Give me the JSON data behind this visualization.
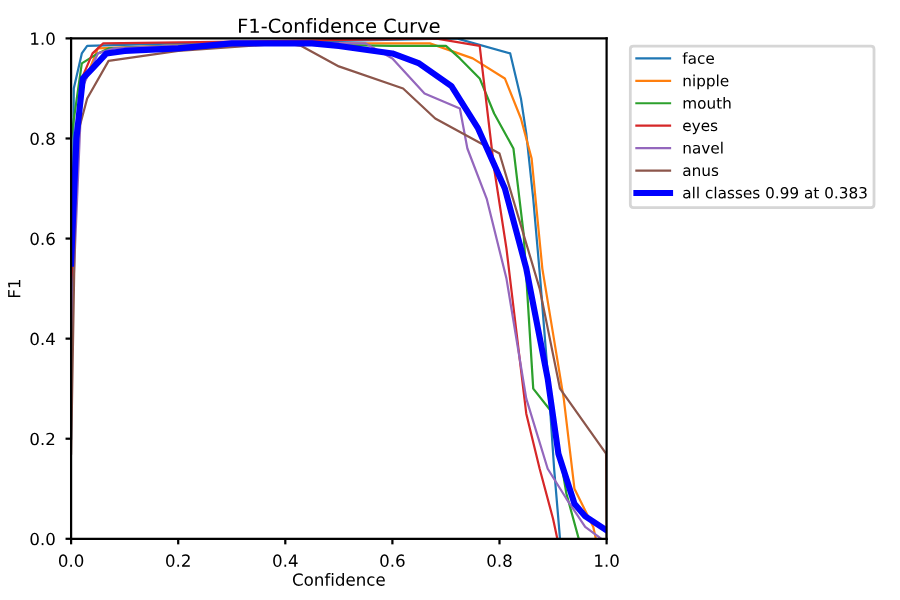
{
  "chart_data": {
    "type": "line",
    "title": "F1-Confidence Curve",
    "xlabel": "Confidence",
    "ylabel": "F1",
    "xlim": [
      0,
      1
    ],
    "ylim": [
      0,
      1
    ],
    "xticks": [
      {
        "value": 0,
        "label": "0.0"
      },
      0.2,
      0.4,
      0.6,
      0.8,
      {
        "value": 1,
        "label": "1.0"
      }
    ],
    "yticks": [
      {
        "value": 0,
        "label": "0.0"
      },
      0.2,
      0.4,
      0.6,
      0.8,
      {
        "value": 1,
        "label": "1.0"
      }
    ],
    "grid": false,
    "legend": "top right",
    "marker": "none",
    "line_style": "solid",
    "series": [
      {
        "name": "face",
        "color": "#1f77b4",
        "x": [
          0,
          0.005,
          0.02,
          0.03,
          0.2,
          0.5,
          0.72,
          0.82,
          0.84,
          0.85,
          0.863,
          0.876,
          0.89,
          0.902,
          0.913
        ],
        "values": [
          0.2,
          0.9,
          0.97,
          0.985,
          0.99,
          0.995,
          1.0,
          0.97,
          0.88,
          0.81,
          0.68,
          0.52,
          0.33,
          0.14,
          0
        ]
      },
      {
        "name": "nipple",
        "color": "#ff7f0e",
        "x": [
          0.02,
          0.05,
          0.3,
          0.67,
          0.75,
          0.81,
          0.84,
          0.86,
          0.88,
          0.9,
          0.92,
          0.94,
          0.975,
          0.98
        ],
        "values": [
          0.9,
          0.98,
          0.99,
          0.99,
          0.96,
          0.92,
          0.84,
          0.76,
          0.54,
          0.41,
          0.28,
          0.1,
          0.024,
          0
        ]
      },
      {
        "name": "mouth",
        "color": "#2ca02c",
        "x": [
          0,
          0.02,
          0.05,
          0.07,
          0.3,
          0.6,
          0.7,
          0.726,
          0.763,
          0.79,
          0.826,
          0.845,
          0.863,
          0.9,
          0.925,
          0.948
        ],
        "values": [
          0.8,
          0.95,
          0.97,
          0.98,
          0.99,
          0.985,
          0.985,
          0.96,
          0.92,
          0.85,
          0.78,
          0.61,
          0.3,
          0.25,
          0.09,
          0
        ]
      },
      {
        "name": "eyes",
        "color": "#d62728",
        "x": [
          0,
          0.02,
          0.04,
          0.06,
          0.4,
          0.68,
          0.763,
          0.79,
          0.813,
          0.832,
          0.85,
          0.875,
          0.9,
          0.908
        ],
        "values": [
          0.5,
          0.92,
          0.97,
          0.99,
          0.995,
          1.0,
          0.985,
          0.74,
          0.58,
          0.41,
          0.25,
          0.14,
          0.04,
          0
        ]
      },
      {
        "name": "navel",
        "color": "#9467bd",
        "x": [
          0,
          0.02,
          0.05,
          0.08,
          0.3,
          0.55,
          0.6,
          0.66,
          0.726,
          0.74,
          0.776,
          0.813,
          0.85,
          0.89,
          0.925,
          0.96,
          0.99
        ],
        "values": [
          0.4,
          0.9,
          0.97,
          0.98,
          0.99,
          0.99,
          0.96,
          0.89,
          0.86,
          0.78,
          0.68,
          0.52,
          0.28,
          0.14,
          0.08,
          0.024,
          0
        ]
      },
      {
        "name": "anus",
        "color": "#8c564b",
        "x": [
          0,
          0.01,
          0.03,
          0.07,
          0.2,
          0.4,
          0.43,
          0.5,
          0.62,
          0.68,
          0.8,
          0.875,
          0.913,
          0.999,
          1.0
        ],
        "values": [
          0.17,
          0.8,
          0.88,
          0.955,
          0.975,
          0.99,
          0.985,
          0.944,
          0.9,
          0.84,
          0.77,
          0.5,
          0.3,
          0.17,
          0
        ]
      },
      {
        "name": "all classes 0.99 at 0.383",
        "color": "#0000ff",
        "x": [
          0,
          0.01,
          0.022,
          0.04,
          0.066,
          0.1,
          0.2,
          0.3,
          0.383,
          0.45,
          0.5,
          0.6,
          0.65,
          0.71,
          0.76,
          0.81,
          0.85,
          0.89,
          0.91,
          0.94,
          0.96,
          1.0
        ],
        "values": [
          0.55,
          0.8,
          0.92,
          0.94,
          0.97,
          0.975,
          0.98,
          0.99,
          0.99,
          0.99,
          0.985,
          0.97,
          0.95,
          0.905,
          0.82,
          0.7,
          0.54,
          0.32,
          0.17,
          0.07,
          0.045,
          0.017
        ]
      }
    ]
  }
}
